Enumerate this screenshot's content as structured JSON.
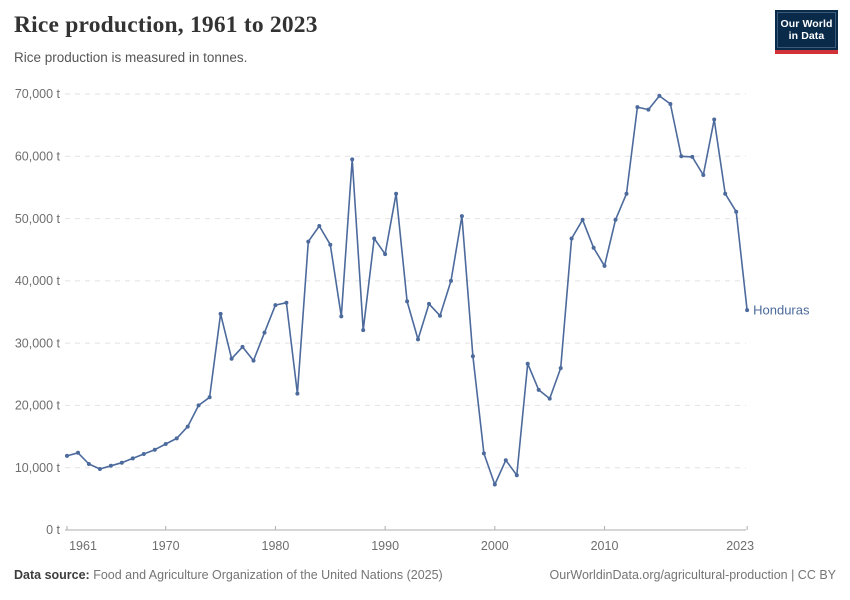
{
  "header": {
    "title": "Rice production, 1961 to 2023",
    "subtitle": "Rice production is measured in tonnes."
  },
  "logo": {
    "line1": "Our World",
    "line2": "in Data"
  },
  "footer": {
    "source_label": "Data source:",
    "source_text": " Food and Agriculture Organization of the United Nations (2025)",
    "link_text": "OurWorldinData.org/agricultural-production | CC BY"
  },
  "colors": {
    "line": "#4C6A9C",
    "entity_label": "#4C6A9C",
    "gridline": "#e2e2e2",
    "axis": "#aeaeae",
    "tick_text": "#6e6e6e",
    "logo_navy": "#0a2a4a",
    "logo_red": "#d13239"
  },
  "chart_data": {
    "type": "line",
    "title": "Rice production, 1961 to 2023",
    "subtitle": "Rice production is measured in tonnes.",
    "xlabel": "",
    "ylabel": "",
    "unit": "t",
    "ylim": [
      0,
      70000
    ],
    "yticks": [
      0,
      10000,
      20000,
      30000,
      40000,
      50000,
      60000,
      70000
    ],
    "ytick_labels": [
      "0 t",
      "10,000 t",
      "20,000 t",
      "30,000 t",
      "40,000 t",
      "50,000 t",
      "60,000 t",
      "70,000 t"
    ],
    "xticks": [
      1961,
      1970,
      1980,
      1990,
      2000,
      2010,
      2023
    ],
    "grid": "horizontal-dashed",
    "legend_position": "end-of-line-label",
    "series": [
      {
        "name": "Honduras",
        "color": "#4C6A9C",
        "x": [
          1961,
          1962,
          1963,
          1964,
          1965,
          1966,
          1967,
          1968,
          1969,
          1970,
          1971,
          1972,
          1973,
          1974,
          1975,
          1976,
          1977,
          1978,
          1979,
          1980,
          1981,
          1982,
          1983,
          1984,
          1985,
          1986,
          1987,
          1988,
          1989,
          1990,
          1991,
          1992,
          1993,
          1994,
          1995,
          1996,
          1997,
          1998,
          1999,
          2000,
          2001,
          2002,
          2003,
          2004,
          2005,
          2006,
          2007,
          2008,
          2009,
          2010,
          2011,
          2012,
          2013,
          2014,
          2015,
          2016,
          2017,
          2018,
          2019,
          2020,
          2021,
          2022,
          2023
        ],
        "values": [
          11900,
          12400,
          10600,
          9800,
          10300,
          10800,
          11500,
          12200,
          12900,
          13800,
          14700,
          16600,
          20000,
          21300,
          34700,
          27500,
          29400,
          27200,
          31700,
          36100,
          36500,
          21900,
          46300,
          48800,
          45800,
          34300,
          59500,
          32100,
          46800,
          44300,
          54000,
          36700,
          30600,
          36300,
          34400,
          40000,
          50400,
          27900,
          12300,
          7300,
          11200,
          8800,
          26700,
          22500,
          21100,
          26000,
          46800,
          49800,
          45300,
          42400,
          49800,
          54000,
          67900,
          67500,
          69700,
          68400,
          60000,
          59900,
          57000,
          65900,
          54000,
          51100,
          35300
        ]
      }
    ]
  }
}
